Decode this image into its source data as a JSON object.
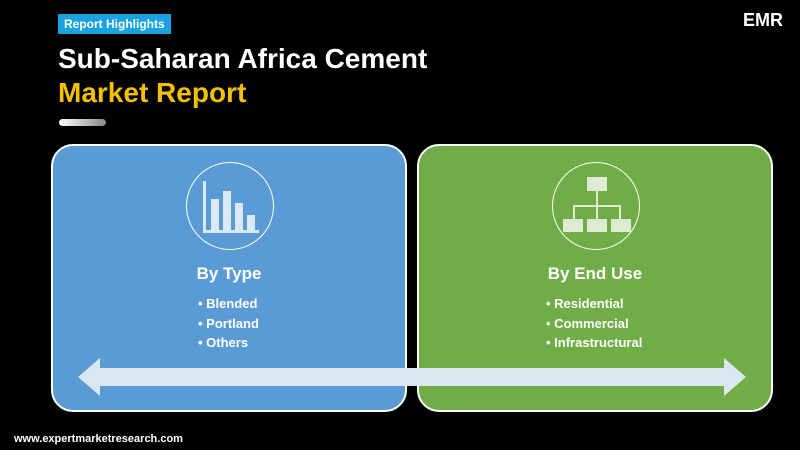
{
  "badge": "Report Highlights",
  "title": {
    "line1": "Sub-Saharan Africa Cement",
    "line2": "Market Report"
  },
  "logo": {
    "text": "EMR"
  },
  "cards": [
    {
      "heading": "By Type",
      "icon": "bar-chart-icon",
      "color": "#5b9bd5",
      "items": [
        "Blended",
        "Portland",
        "Others"
      ]
    },
    {
      "heading": "By End Use",
      "icon": "hierarchy-icon",
      "color": "#70ad47",
      "items": [
        "Residential",
        "Commercial",
        "Infrastructural"
      ]
    }
  ],
  "footer": {
    "url": "www.expertmarketresearch.com"
  }
}
